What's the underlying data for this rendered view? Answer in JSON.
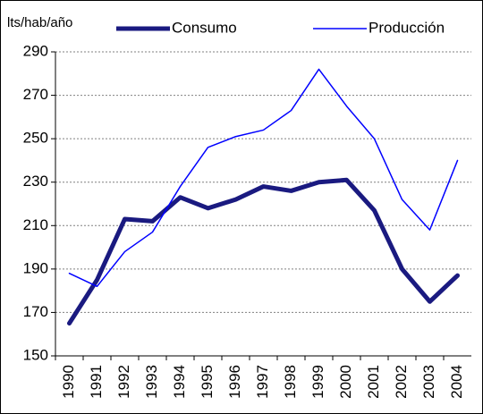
{
  "chart_data": {
    "type": "line",
    "y_label": "lts/hab/año",
    "categories": [
      "1990",
      "1991",
      "1992",
      "1993",
      "1994",
      "1995",
      "1996",
      "1997",
      "1998",
      "1999",
      "2000",
      "2001",
      "2002",
      "2003",
      "2004"
    ],
    "series": [
      {
        "name": "Consumo",
        "color": "#1a1a80",
        "values": [
          165,
          185,
          213,
          212,
          223,
          218,
          222,
          228,
          226,
          230,
          231,
          217,
          190,
          175,
          187
        ]
      },
      {
        "name": "Producción",
        "color": "#0000ff",
        "values": [
          188,
          182,
          198,
          207,
          228,
          246,
          251,
          254,
          263,
          282,
          265,
          250,
          222,
          208,
          240
        ]
      }
    ],
    "ylim": [
      150,
      290
    ],
    "yticks": [
      150,
      170,
      190,
      210,
      230,
      250,
      270,
      290
    ],
    "grid": true
  }
}
